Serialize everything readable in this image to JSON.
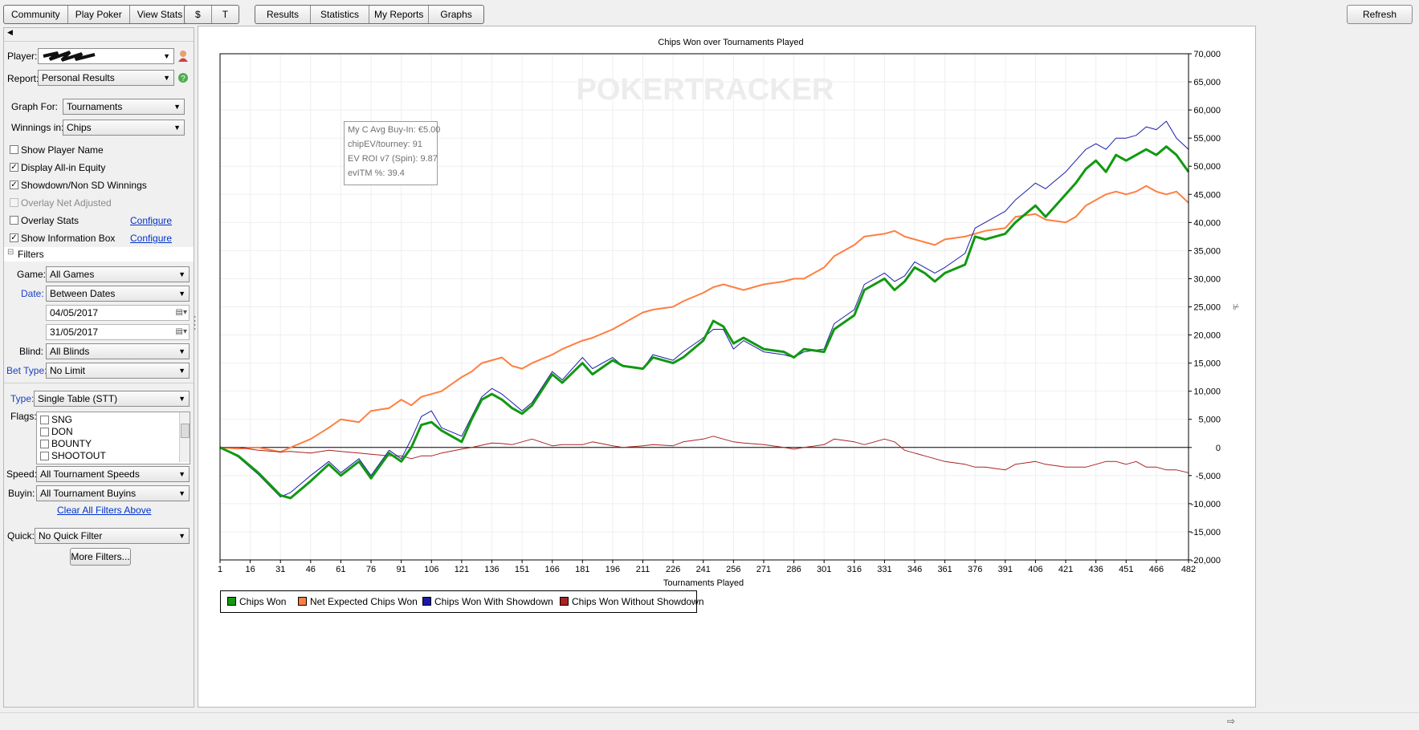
{
  "toolbar": {
    "group1": [
      "Community",
      "Play Poker",
      "View Stats"
    ],
    "group2": [
      "$",
      "T"
    ],
    "group3": [
      "Results",
      "Statistics",
      "My Reports",
      "Graphs"
    ],
    "refresh": "Refresh"
  },
  "sidebar": {
    "player_label": "Player:",
    "report_label": "Report:",
    "report_value": "Personal Results",
    "graph_for_label": "Graph For:",
    "graph_for_value": "Tournaments",
    "winnings_label": "Winnings in:",
    "winnings_value": "Chips",
    "options": [
      {
        "label": "Show Player Name",
        "checked": false,
        "disabled": false
      },
      {
        "label": "Display All-in Equity",
        "checked": true,
        "disabled": false
      },
      {
        "label": "Showdown/Non SD Winnings",
        "checked": true,
        "disabled": false
      },
      {
        "label": "Overlay Net Adjusted",
        "checked": false,
        "disabled": true
      },
      {
        "label": "Overlay Stats",
        "checked": false,
        "disabled": false
      },
      {
        "label": "Show Information Box",
        "checked": true,
        "disabled": false
      }
    ],
    "configure": "Configure",
    "filters_header": "Filters",
    "game_label": "Game:",
    "game_value": "All Games",
    "date_label": "Date:",
    "date_value": "Between Dates",
    "date_from": "04/05/2017",
    "date_to": "31/05/2017",
    "blind_label": "Blind:",
    "blind_value": "All Blinds",
    "bet_type_label": "Bet Type:",
    "bet_type_value": "No Limit",
    "type_label": "Type:",
    "type_value": "Single Table (STT)",
    "flags_label": "Flags:",
    "flags": [
      "SNG",
      "DON",
      "BOUNTY",
      "SHOOTOUT"
    ],
    "speed_label": "Speed:",
    "speed_value": "All Tournament Speeds",
    "buyin_label": "Buyin:",
    "buyin_value": "All Tournament Buyins",
    "clear_filters": "Clear All Filters Above",
    "quick_label": "Quick:",
    "quick_value": "No Quick Filter",
    "more_filters": "More Filters..."
  },
  "info_box": {
    "lines": [
      "My C Avg Buy-In: €5.00",
      "chipEV/tourney: 91",
      "EV ROI v7 (Spin): 9.87",
      "evITM %: 39.4"
    ]
  },
  "watermark": "POKERTRACKER",
  "colors": {
    "chips_won": "#119911",
    "net_expected": "#ff7f40",
    "with_showdown": "#1a1aaa",
    "without_showdown": "#aa2222"
  },
  "chart_data": {
    "type": "line",
    "title": "Chips Won over Tournaments Played",
    "xlabel": "Tournaments Played",
    "ylabel": "",
    "xlim": [
      1,
      482
    ],
    "ylim": [
      -20000,
      70000
    ],
    "x_ticks": [
      "1",
      "16",
      "31",
      "46",
      "61",
      "76",
      "91",
      "106",
      "121",
      "136",
      "151",
      "166",
      "181",
      "196",
      "211",
      "226",
      "241",
      "256",
      "271",
      "286",
      "301",
      "316",
      "331",
      "346",
      "361",
      "376",
      "391",
      "406",
      "421",
      "436",
      "451",
      "466",
      "482"
    ],
    "y_ticks": [
      "70,000",
      "65,000",
      "60,000",
      "55,000",
      "50,000",
      "45,000",
      "40,000",
      "35,000",
      "30,000",
      "25,000",
      "20,000",
      "15,000",
      "10,000",
      "5,000",
      "0",
      "-5,000",
      "-10,000",
      "-15,000",
      "-20,000"
    ],
    "grid": true,
    "legend_position": "bottom-left",
    "x": [
      1,
      10,
      20,
      31,
      36,
      46,
      55,
      61,
      70,
      76,
      85,
      91,
      96,
      101,
      106,
      111,
      121,
      126,
      131,
      136,
      141,
      146,
      151,
      156,
      166,
      171,
      181,
      186,
      196,
      201,
      211,
      216,
      226,
      231,
      241,
      246,
      251,
      256,
      261,
      271,
      281,
      286,
      291,
      301,
      306,
      316,
      321,
      331,
      336,
      341,
      346,
      351,
      356,
      361,
      371,
      376,
      381,
      391,
      396,
      406,
      411,
      421,
      426,
      431,
      436,
      441,
      446,
      451,
      456,
      461,
      466,
      471,
      476,
      482
    ],
    "series": [
      {
        "name": "Chips Won",
        "values": [
          0,
          -1500,
          -4500,
          -8500,
          -9000,
          -6000,
          -3000,
          -5000,
          -2500,
          -5500,
          -1000,
          -2500,
          0,
          4000,
          4500,
          3000,
          1000,
          5000,
          8500,
          9500,
          8500,
          7000,
          6000,
          7500,
          13000,
          11500,
          15000,
          13000,
          15500,
          14500,
          14000,
          16000,
          15000,
          16000,
          19000,
          22500,
          21500,
          18500,
          19500,
          17500,
          17000,
          16000,
          17500,
          17000,
          21000,
          23500,
          28000,
          30000,
          28000,
          29500,
          32000,
          31000,
          29500,
          31000,
          32500,
          37500,
          37000,
          38000,
          40000,
          43000,
          41000,
          45000,
          47000,
          49500,
          51000,
          49000,
          52000,
          51000,
          52000,
          53000,
          52000,
          53500,
          52000,
          49000
        ]
      },
      {
        "name": "Net Expected Chips Won",
        "values": [
          0,
          -200,
          0,
          -800,
          0,
          1500,
          3500,
          5000,
          4500,
          6500,
          7000,
          8500,
          7500,
          9000,
          9500,
          10000,
          12500,
          13500,
          15000,
          15500,
          16000,
          14500,
          14000,
          15000,
          16500,
          17500,
          19000,
          19500,
          21000,
          22000,
          24000,
          24500,
          25000,
          26000,
          27500,
          28500,
          29000,
          28500,
          28000,
          29000,
          29500,
          30000,
          30000,
          32000,
          34000,
          36000,
          37500,
          38000,
          38500,
          37500,
          37000,
          36500,
          36000,
          37000,
          37500,
          38000,
          38500,
          39000,
          41000,
          41500,
          40500,
          40000,
          41000,
          43000,
          44000,
          45000,
          45500,
          45000,
          45500,
          46500,
          45500,
          45000,
          45500,
          43500
        ]
      },
      {
        "name": "Chips Won With Showdown",
        "values": [
          0,
          -1700,
          -4800,
          -8800,
          -8000,
          -5000,
          -2500,
          -4500,
          -2000,
          -5000,
          -500,
          -2000,
          1500,
          5500,
          6500,
          3500,
          2000,
          5500,
          9000,
          10500,
          9500,
          8000,
          6500,
          8000,
          13500,
          12000,
          16000,
          14000,
          16000,
          14500,
          14000,
          16500,
          15500,
          17000,
          19500,
          21000,
          21000,
          17500,
          19000,
          17000,
          16500,
          16000,
          17000,
          17500,
          22000,
          24500,
          29000,
          31000,
          29500,
          30500,
          33000,
          32000,
          31000,
          32000,
          34500,
          39000,
          40000,
          42000,
          44000,
          47000,
          46000,
          49000,
          51000,
          53000,
          54000,
          53000,
          55000,
          55000,
          55500,
          57000,
          56500,
          58000,
          55000,
          53000
        ]
      },
      {
        "name": "Chips Won Without Showdown",
        "values": [
          0,
          0,
          -500,
          -800,
          -700,
          -1000,
          -500,
          -700,
          -1000,
          -1200,
          -1500,
          -1500,
          -2000,
          -1500,
          -1500,
          -1000,
          -300,
          0,
          400,
          800,
          700,
          500,
          1000,
          1500,
          300,
          500,
          500,
          1000,
          300,
          0,
          300,
          500,
          300,
          1000,
          1500,
          2000,
          1500,
          1000,
          800,
          500,
          0,
          -300,
          0,
          500,
          1500,
          1000,
          500,
          1500,
          1000,
          -500,
          -1000,
          -1500,
          -2000,
          -2500,
          -3000,
          -3500,
          -3500,
          -4000,
          -3000,
          -2500,
          -3000,
          -3500,
          -3500,
          -3500,
          -3000,
          -2500,
          -2500,
          -3000,
          -2500,
          -3500,
          -3500,
          -4000,
          -4000,
          -4500
        ]
      }
    ]
  }
}
